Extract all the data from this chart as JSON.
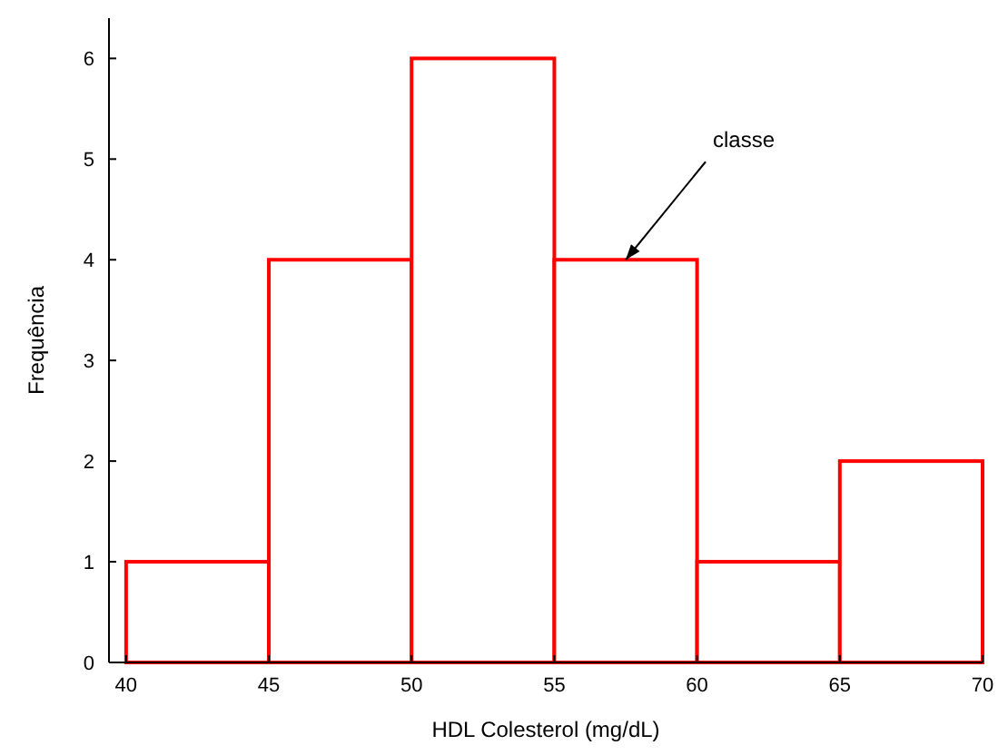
{
  "chart_data": {
    "type": "histogram",
    "xlabel": "HDL Colesterol (mg/dL)",
    "ylabel": "Frequência",
    "bins": [
      40,
      45,
      50,
      55,
      60,
      65,
      70
    ],
    "values": [
      1,
      4,
      6,
      4,
      1,
      2
    ],
    "color": "#ff0000",
    "xlim": [
      39.4,
      70
    ],
    "ylim": [
      0,
      6.4
    ],
    "xticks": [
      40,
      45,
      50,
      55,
      60,
      65,
      70
    ],
    "yticks": [
      0,
      1,
      2,
      3,
      4,
      5,
      6
    ],
    "annotations": [
      {
        "text": "classe",
        "x": 57.5,
        "y": 4
      }
    ],
    "grid": false
  }
}
